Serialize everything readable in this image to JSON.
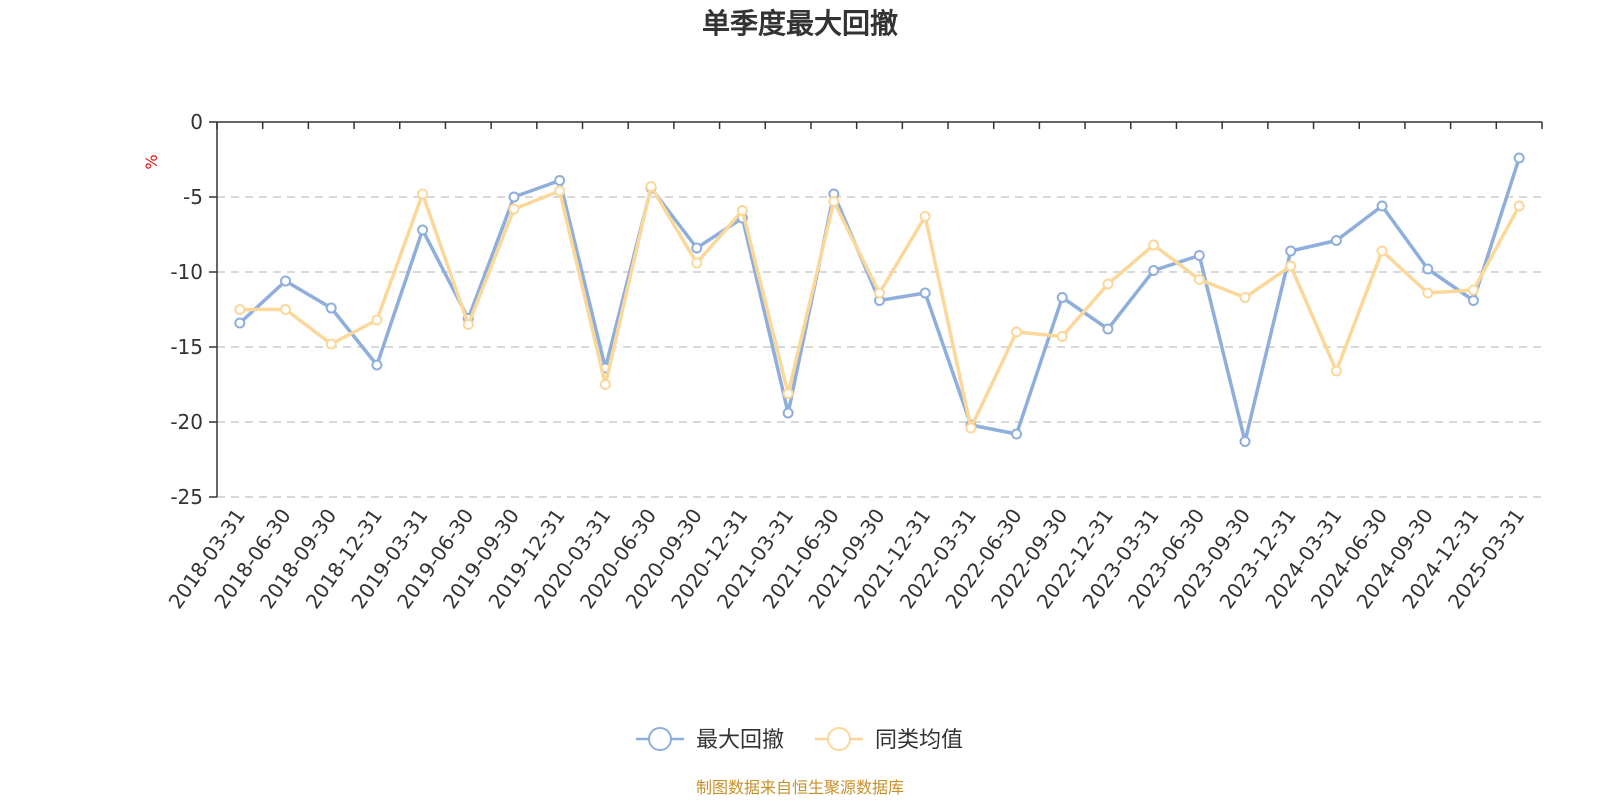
{
  "chart_data": {
    "type": "line",
    "title": "单季度最大回撤",
    "ylabel": "%",
    "xlabel": "",
    "ylim": [
      -25,
      0
    ],
    "yticks": [
      0,
      -5,
      -10,
      -15,
      -20,
      -25
    ],
    "grid": true,
    "legend_position": "bottom-center",
    "x": [
      "2018-03-31",
      "2018-06-30",
      "2018-09-30",
      "2018-12-31",
      "2019-03-31",
      "2019-06-30",
      "2019-09-30",
      "2019-12-31",
      "2020-03-31",
      "2020-06-30",
      "2020-09-30",
      "2020-12-31",
      "2021-03-31",
      "2021-06-30",
      "2021-09-30",
      "2021-12-31",
      "2022-03-31",
      "2022-06-30",
      "2022-09-30",
      "2022-12-31",
      "2023-03-31",
      "2023-06-30",
      "2023-09-30",
      "2023-12-31",
      "2024-03-31",
      "2024-06-30",
      "2024-09-30",
      "2024-12-31",
      "2025-03-31"
    ],
    "series": [
      {
        "name": "最大回撤",
        "color": "#8eaedc",
        "values": [
          -13.4,
          -10.6,
          -12.4,
          -16.2,
          -7.2,
          -13.1,
          -5.0,
          -3.9,
          -16.4,
          -4.4,
          -8.4,
          -6.4,
          -19.4,
          -4.8,
          -11.9,
          -11.4,
          -20.2,
          -20.8,
          -11.7,
          -13.8,
          -9.9,
          -8.9,
          -21.3,
          -8.6,
          -7.9,
          -5.6,
          -9.8,
          -11.9,
          -2.4
        ]
      },
      {
        "name": "同类均值",
        "color": "#fbd89a",
        "values": [
          -12.5,
          -12.5,
          -14.8,
          -13.2,
          -4.8,
          -13.5,
          -5.8,
          -4.6,
          -17.5,
          -4.3,
          -9.4,
          -5.9,
          -18.1,
          -5.3,
          -11.4,
          -6.3,
          -20.4,
          -14.0,
          -14.3,
          -10.8,
          -8.2,
          -10.5,
          -11.7,
          -9.6,
          -16.6,
          -8.6,
          -11.4,
          -11.2,
          -5.6
        ]
      }
    ]
  },
  "source_note": "制图数据来自恒生聚源数据库"
}
